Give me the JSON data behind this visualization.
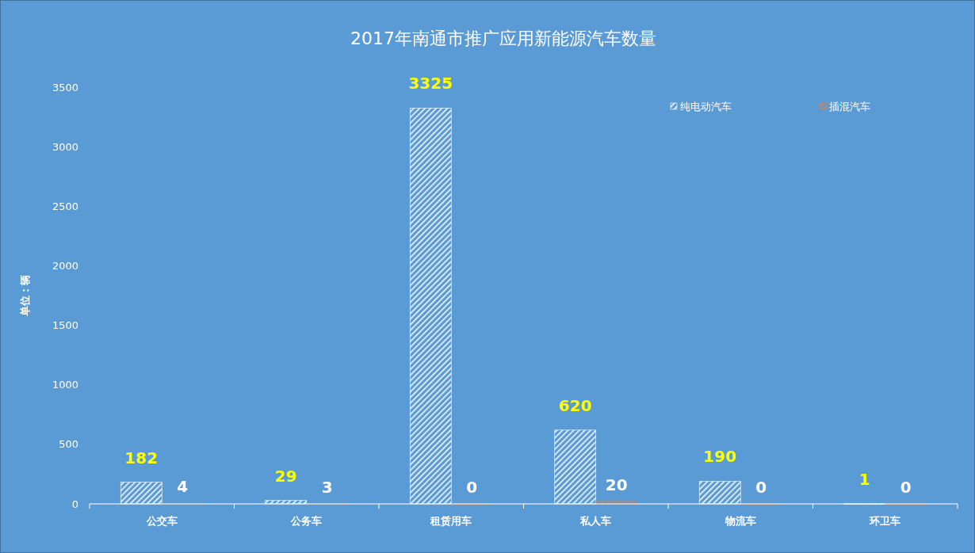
{
  "chart_data": {
    "type": "bar",
    "title": "2017年南通市推广应用新能源汽车数量",
    "ylabel": "单位：辆",
    "categories": [
      "公交车",
      "公务车",
      "租赁用车",
      "私人车",
      "物流车",
      "环卫车"
    ],
    "series": [
      {
        "name": "纯电动汽车",
        "color": "#ffffff",
        "values": [
          182,
          29,
          3325,
          620,
          190,
          1
        ]
      },
      {
        "name": "插混汽车",
        "color": "#ed7d31",
        "values": [
          4,
          3,
          0,
          20,
          0,
          0
        ]
      }
    ],
    "ylim": [
      0,
      3500
    ],
    "yticks": [
      0,
      500,
      1000,
      1500,
      2000,
      2500,
      3000,
      3500
    ],
    "grid": false,
    "legend": "top right",
    "data_labels": true
  }
}
